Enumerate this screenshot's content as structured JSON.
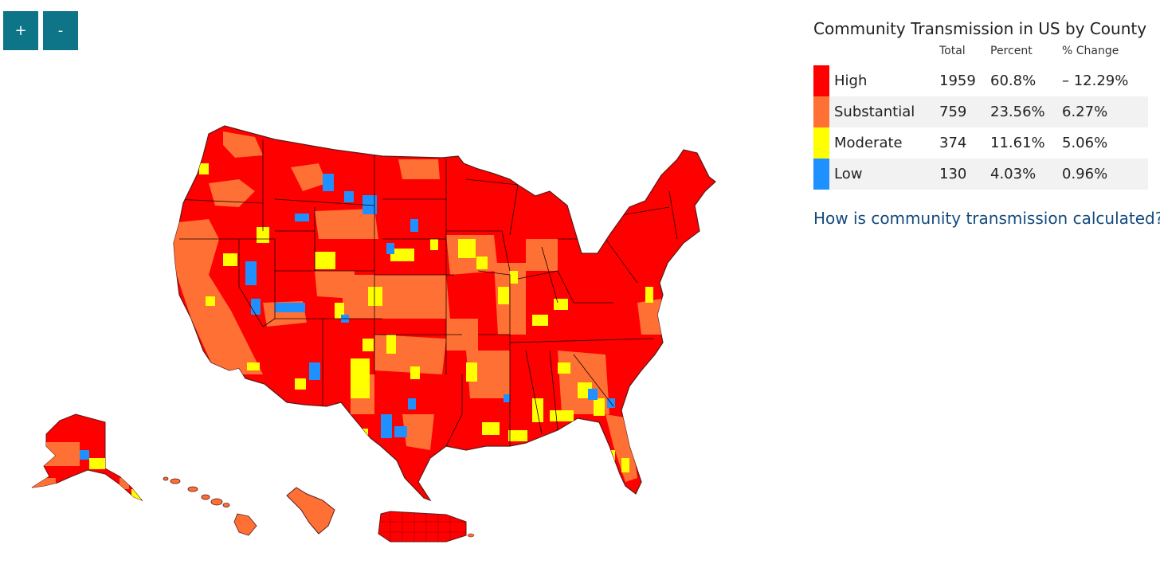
{
  "zoom": {
    "in_label": "+",
    "out_label": "-"
  },
  "legend": {
    "title": "Community Transmission in US by County",
    "columns": {
      "total": "Total",
      "percent": "Percent",
      "change": "% Change"
    },
    "rows": [
      {
        "label": "High",
        "total": "1959",
        "percent": "60.8%",
        "change": "– 12.29%",
        "color": "#ff0000"
      },
      {
        "label": "Substantial",
        "total": "759",
        "percent": "23.56%",
        "change": "6.27%",
        "color": "#ff7035"
      },
      {
        "label": "Moderate",
        "total": "374",
        "percent": "11.61%",
        "change": "5.06%",
        "color": "#ffff00"
      },
      {
        "label": "Low",
        "total": "130",
        "percent": "4.03%",
        "change": "0.96%",
        "color": "#1e90ff"
      }
    ],
    "link_text": "How is community transmission calculated?"
  },
  "map": {
    "regions": [
      "contiguous-us",
      "alaska",
      "hawaii",
      "guam",
      "puerto-rico"
    ],
    "colors": {
      "high": "#ff0000",
      "substantial": "#ff7035",
      "moderate": "#ffff00",
      "low": "#1e90ff",
      "border": "#5a1a1a"
    }
  }
}
